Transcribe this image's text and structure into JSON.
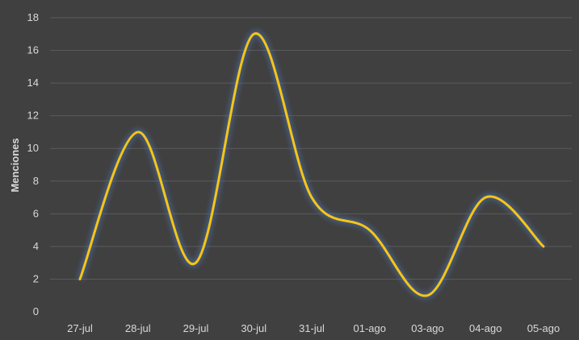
{
  "chart_data": {
    "type": "line",
    "title": "",
    "xlabel": "",
    "ylabel": "Menciones",
    "categories": [
      "27-jul",
      "28-jul",
      "29-jul",
      "30-jul",
      "31-jul",
      "01-ago",
      "03-ago",
      "04-ago",
      "05-ago"
    ],
    "series": [
      {
        "values": [
          2,
          11,
          3,
          17,
          7,
          5,
          1,
          7,
          4
        ]
      }
    ],
    "ylim": [
      0,
      18
    ],
    "yticks": [
      0,
      2,
      4,
      6,
      8,
      10,
      12,
      14,
      16,
      18
    ],
    "grid": "horizontal",
    "smooth": true,
    "line_color": "#f5c518",
    "glow_color": "#4a6fa5",
    "background": "#404040"
  }
}
